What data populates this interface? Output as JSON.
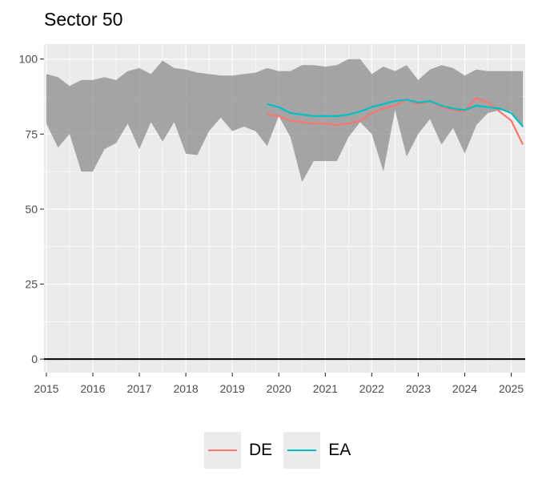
{
  "title": "Sector 50",
  "chart_data": {
    "type": "line",
    "title": "Sector 50",
    "xlabel": "",
    "ylabel": "",
    "x_ticks": [
      "2015",
      "2016",
      "2017",
      "2018",
      "2019",
      "2020",
      "2021",
      "2022",
      "2023",
      "2024",
      "2025"
    ],
    "y_ticks": [
      "0",
      "25",
      "50",
      "75",
      "100"
    ],
    "xlim": [
      2014.95,
      2025.3
    ],
    "ylim": [
      -4.5,
      105
    ],
    "grid": true,
    "legend_position": "bottom",
    "band": {
      "x": [
        2015.0,
        2015.25,
        2015.5,
        2015.75,
        2016.0,
        2016.25,
        2016.5,
        2016.75,
        2017.0,
        2017.25,
        2017.5,
        2017.75,
        2018.0,
        2018.25,
        2018.5,
        2018.75,
        2019.0,
        2019.25,
        2019.5,
        2019.75,
        2020.0,
        2020.25,
        2020.5,
        2020.75,
        2021.0,
        2021.25,
        2021.5,
        2021.75,
        2022.0,
        2022.25,
        2022.5,
        2022.75,
        2023.0,
        2023.25,
        2023.5,
        2023.75,
        2024.0,
        2024.25,
        2024.5,
        2024.75,
        2025.0,
        2025.25
      ],
      "upper": [
        95,
        94,
        91,
        93,
        93,
        94,
        93,
        96,
        97,
        95,
        99.5,
        97,
        96.5,
        95.5,
        95,
        94.5,
        94.5,
        95,
        95.5,
        97,
        96,
        96,
        98,
        98,
        97.5,
        98,
        100,
        100,
        95,
        97.5,
        96,
        98,
        93,
        96.5,
        98,
        97,
        94.5,
        96.5,
        96,
        96,
        96,
        96
      ],
      "lower": [
        78.5,
        70.5,
        75,
        62.5,
        62.5,
        70,
        72,
        78.5,
        70,
        79,
        72.5,
        79,
        68.5,
        68,
        76,
        80.5,
        76,
        77.5,
        76,
        71,
        81,
        74,
        59,
        66,
        66,
        66,
        74,
        79,
        75,
        62.5,
        83,
        67.5,
        75,
        80,
        71.5,
        77,
        68.5,
        78,
        82,
        83,
        82.5,
        77
      ]
    },
    "series": [
      {
        "name": "DE",
        "color": "#F8766D",
        "x": [
          2019.75,
          2020.0,
          2020.25,
          2020.5,
          2020.75,
          2021.0,
          2021.25,
          2021.5,
          2021.75,
          2022.0,
          2022.25,
          2022.5,
          2022.75,
          2023.0,
          2023.25,
          2023.5,
          2023.75,
          2024.0,
          2024.25,
          2024.5,
          2024.75,
          2025.0,
          2025.25
        ],
        "values": [
          81.5,
          81,
          79.5,
          79,
          78.5,
          78.5,
          78,
          78.5,
          79.5,
          82,
          83.5,
          84.5,
          86.5,
          85,
          86,
          84,
          83,
          82.5,
          87,
          85.5,
          82.5,
          79.5,
          71.5
        ]
      },
      {
        "name": "EA",
        "color": "#00BFC4",
        "x": [
          2019.75,
          2020.0,
          2020.25,
          2020.5,
          2020.75,
          2021.0,
          2021.25,
          2021.5,
          2021.75,
          2022.0,
          2022.25,
          2022.5,
          2022.75,
          2023.0,
          2023.25,
          2023.5,
          2023.75,
          2024.0,
          2024.25,
          2024.5,
          2024.75,
          2025.0,
          2025.25
        ],
        "values": [
          85,
          84,
          82,
          81.5,
          81,
          81,
          81,
          81.5,
          82.5,
          84,
          85,
          86,
          86.5,
          85.5,
          86,
          84.5,
          83.5,
          83,
          84.5,
          84,
          83.5,
          82,
          77.5
        ]
      }
    ]
  },
  "legend": {
    "items": [
      {
        "label": "DE",
        "color": "#F8766D"
      },
      {
        "label": "EA",
        "color": "#00BFC4"
      }
    ]
  }
}
